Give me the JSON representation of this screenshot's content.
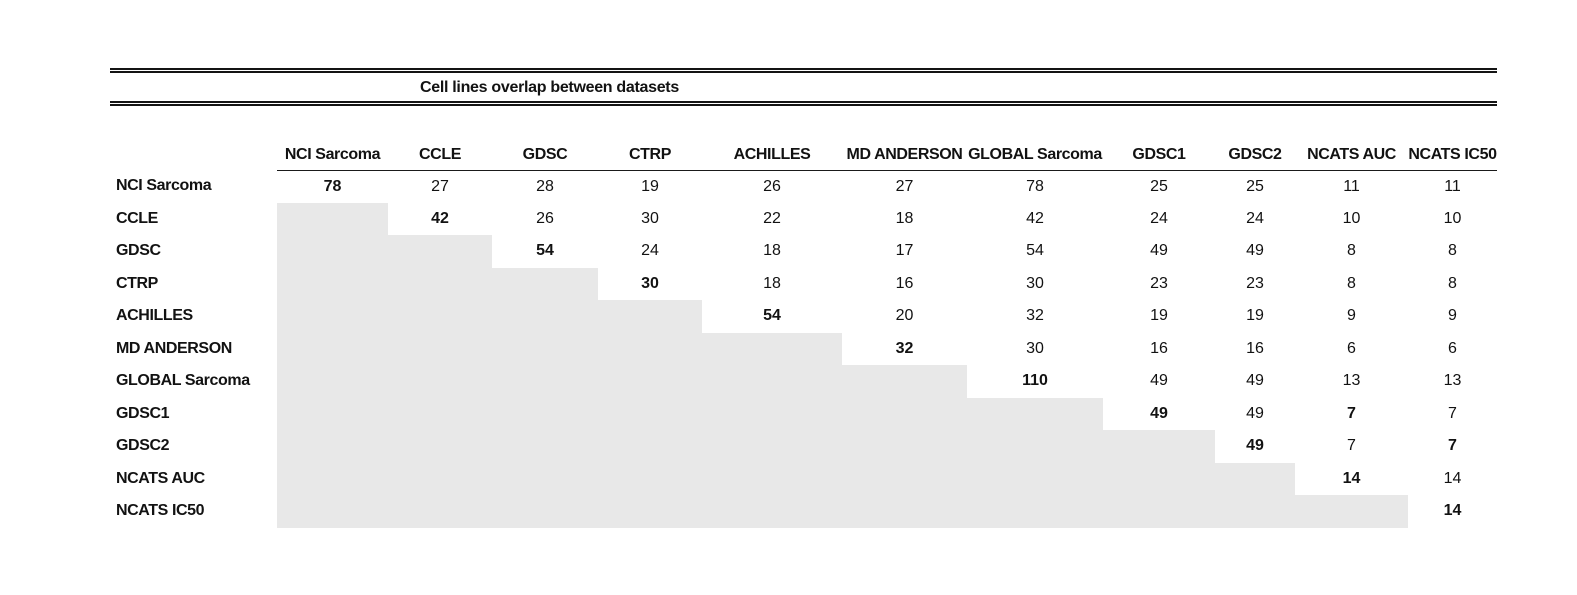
{
  "table": {
    "title": "Cell lines overlap between datasets",
    "shaded_color": "#e8e8e8",
    "columns": [
      "NCI Sarcoma",
      "CCLE",
      "GDSC",
      "CTRP",
      "ACHILLES",
      "MD ANDERSON",
      "GLOBAL Sarcoma",
      "GDSC1",
      "GDSC2",
      "NCATS AUC",
      "NCATS IC50"
    ],
    "rows": [
      {
        "label": "NCI Sarcoma",
        "cells": [
          {
            "v": "78",
            "bold": true
          },
          {
            "v": "27"
          },
          {
            "v": "28"
          },
          {
            "v": "19"
          },
          {
            "v": "26"
          },
          {
            "v": "27"
          },
          {
            "v": "78"
          },
          {
            "v": "25"
          },
          {
            "v": "25"
          },
          {
            "v": "11"
          },
          {
            "v": "11"
          }
        ]
      },
      {
        "label": "CCLE",
        "cells": [
          {
            "shaded": true
          },
          {
            "v": "42",
            "bold": true
          },
          {
            "v": "26"
          },
          {
            "v": "30"
          },
          {
            "v": "22"
          },
          {
            "v": "18"
          },
          {
            "v": "42"
          },
          {
            "v": "24"
          },
          {
            "v": "24"
          },
          {
            "v": "10"
          },
          {
            "v": "10"
          }
        ]
      },
      {
        "label": "GDSC",
        "cells": [
          {
            "shaded": true
          },
          {
            "shaded": true
          },
          {
            "v": "54",
            "bold": true
          },
          {
            "v": "24"
          },
          {
            "v": "18"
          },
          {
            "v": "17"
          },
          {
            "v": "54"
          },
          {
            "v": "49"
          },
          {
            "v": "49"
          },
          {
            "v": "8"
          },
          {
            "v": "8"
          }
        ]
      },
      {
        "label": "CTRP",
        "cells": [
          {
            "shaded": true
          },
          {
            "shaded": true
          },
          {
            "shaded": true
          },
          {
            "v": "30",
            "bold": true
          },
          {
            "v": "18"
          },
          {
            "v": "16"
          },
          {
            "v": "30"
          },
          {
            "v": "23"
          },
          {
            "v": "23"
          },
          {
            "v": "8"
          },
          {
            "v": "8"
          }
        ]
      },
      {
        "label": "ACHILLES",
        "cells": [
          {
            "shaded": true
          },
          {
            "shaded": true
          },
          {
            "shaded": true
          },
          {
            "shaded": true
          },
          {
            "v": "54",
            "bold": true
          },
          {
            "v": "20"
          },
          {
            "v": "32"
          },
          {
            "v": "19"
          },
          {
            "v": "19"
          },
          {
            "v": "9"
          },
          {
            "v": "9"
          }
        ]
      },
      {
        "label": "MD ANDERSON",
        "cells": [
          {
            "shaded": true
          },
          {
            "shaded": true
          },
          {
            "shaded": true
          },
          {
            "shaded": true
          },
          {
            "shaded": true
          },
          {
            "v": "32",
            "bold": true
          },
          {
            "v": "30"
          },
          {
            "v": "16"
          },
          {
            "v": "16"
          },
          {
            "v": "6"
          },
          {
            "v": "6"
          }
        ]
      },
      {
        "label": "GLOBAL Sarcoma",
        "cells": [
          {
            "shaded": true
          },
          {
            "shaded": true
          },
          {
            "shaded": true
          },
          {
            "shaded": true
          },
          {
            "shaded": true
          },
          {
            "shaded": true
          },
          {
            "v": "110",
            "bold": true
          },
          {
            "v": "49"
          },
          {
            "v": "49"
          },
          {
            "v": "13"
          },
          {
            "v": "13"
          }
        ]
      },
      {
        "label": "GDSC1",
        "cells": [
          {
            "shaded": true
          },
          {
            "shaded": true
          },
          {
            "shaded": true
          },
          {
            "shaded": true
          },
          {
            "shaded": true
          },
          {
            "shaded": true
          },
          {
            "shaded": true
          },
          {
            "v": "49",
            "bold": true
          },
          {
            "v": "49"
          },
          {
            "v": "7",
            "bold": true
          },
          {
            "v": "7"
          }
        ]
      },
      {
        "label": "GDSC2",
        "cells": [
          {
            "shaded": true
          },
          {
            "shaded": true
          },
          {
            "shaded": true
          },
          {
            "shaded": true
          },
          {
            "shaded": true
          },
          {
            "shaded": true
          },
          {
            "shaded": true
          },
          {
            "shaded": true
          },
          {
            "v": "49",
            "bold": true
          },
          {
            "v": "7"
          },
          {
            "v": "7",
            "bold": true
          }
        ]
      },
      {
        "label": "NCATS AUC",
        "cells": [
          {
            "shaded": true
          },
          {
            "shaded": true
          },
          {
            "shaded": true
          },
          {
            "shaded": true
          },
          {
            "shaded": true
          },
          {
            "shaded": true
          },
          {
            "shaded": true
          },
          {
            "shaded": true
          },
          {
            "shaded": true
          },
          {
            "v": "14",
            "bold": true
          },
          {
            "v": "14"
          }
        ]
      },
      {
        "label": "NCATS IC50",
        "cells": [
          {
            "shaded": true
          },
          {
            "shaded": true
          },
          {
            "shaded": true
          },
          {
            "shaded": true
          },
          {
            "shaded": true
          },
          {
            "shaded": true
          },
          {
            "shaded": true
          },
          {
            "shaded": true
          },
          {
            "shaded": true
          },
          {
            "shaded": true
          },
          {
            "v": "14",
            "bold": true
          }
        ]
      }
    ]
  }
}
